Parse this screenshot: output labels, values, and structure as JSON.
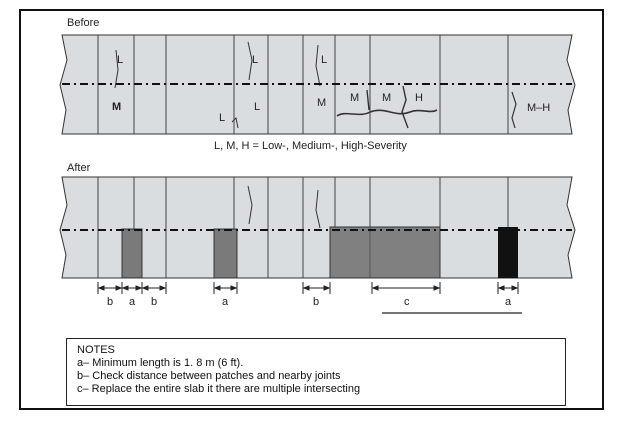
{
  "before_label": "Before",
  "after_label": "After",
  "legend": "L, M, H = Low-, Medium-, High-Severity",
  "severity_marks": [
    "L",
    "M",
    "L",
    "L",
    "L",
    "L",
    "M",
    "M",
    "M",
    "H",
    "M–H"
  ],
  "dimension_labels": [
    "b",
    "a",
    "b",
    "a",
    "b",
    "c",
    "a"
  ],
  "notes": {
    "title": "NOTES",
    "lines": [
      "a– Minimum length is 1. 8 m (6 ft).",
      "b– Check distance between patches and nearby joints",
      "c– Replace the entire slab it there are multiple intersecting"
    ]
  },
  "colors": {
    "slab": "#d9dde0",
    "patch_medium": "#7a7a7a",
    "patch_large": "#808080",
    "patch_dark": "#111111"
  }
}
